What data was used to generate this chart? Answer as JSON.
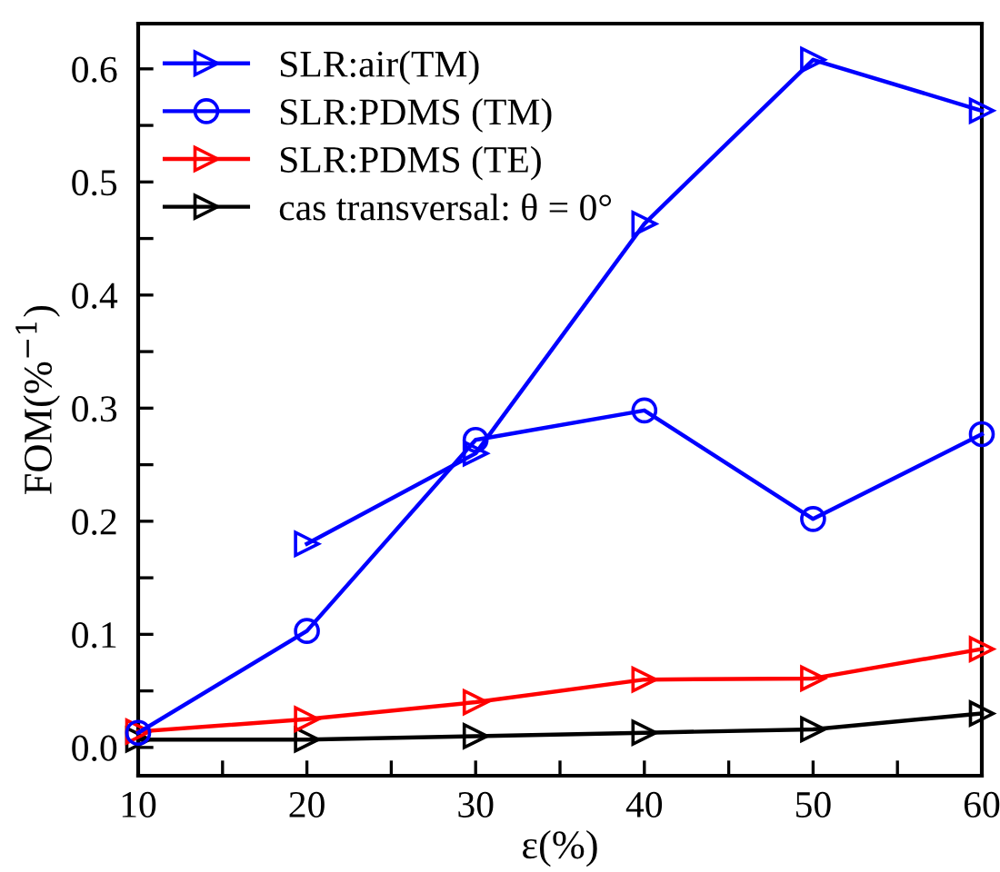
{
  "chart_data": {
    "type": "line",
    "xlabel": "ε(%)",
    "ylabel": "FOM(%$^{−1}$)",
    "x": [
      10,
      20,
      30,
      40,
      50,
      60
    ],
    "series": [
      {
        "name": "SLR:air(TM)",
        "color": "#0000ff",
        "marker": "triangle",
        "values": [
          null,
          0.18,
          0.26,
          0.463,
          0.608,
          0.563
        ]
      },
      {
        "name": "SLR:PDMS (TM)",
        "color": "#0000ff",
        "marker": "circle",
        "values": [
          0.013,
          0.103,
          0.272,
          0.298,
          0.202,
          0.277
        ]
      },
      {
        "name": "SLR:PDMS (TE)",
        "color": "#ff0000",
        "marker": "triangle",
        "values": [
          0.014,
          0.025,
          0.04,
          0.06,
          0.061,
          0.087
        ]
      },
      {
        "name": "cas transversal: θ = 0°",
        "color": "#000000",
        "marker": "triangle",
        "values": [
          0.007,
          0.007,
          0.01,
          0.013,
          0.016,
          0.03
        ]
      }
    ],
    "xlim": [
      10,
      60
    ],
    "ylim": [
      -0.025,
      0.64
    ],
    "xticks": [
      10,
      {
        "value": 15,
        "label": null
      },
      20,
      {
        "value": 25,
        "label": null
      },
      30,
      {
        "value": 35,
        "label": null
      },
      40,
      {
        "value": 45,
        "label": null
      },
      50,
      {
        "value": 55,
        "label": null
      },
      60
    ],
    "yticks": [
      {
        "value": 0,
        "label": "0.0"
      },
      {
        "value": 0.05,
        "label": null
      },
      0.1,
      {
        "value": 0.15,
        "label": null
      },
      0.2,
      {
        "value": 0.25,
        "label": null
      },
      0.3,
      {
        "value": 0.35,
        "label": null
      },
      0.4,
      {
        "value": 0.45,
        "label": null
      },
      0.5,
      {
        "value": 0.55,
        "label": null
      },
      0.6
    ],
    "grid": false,
    "legend": "top left",
    "line_style": "solid"
  }
}
